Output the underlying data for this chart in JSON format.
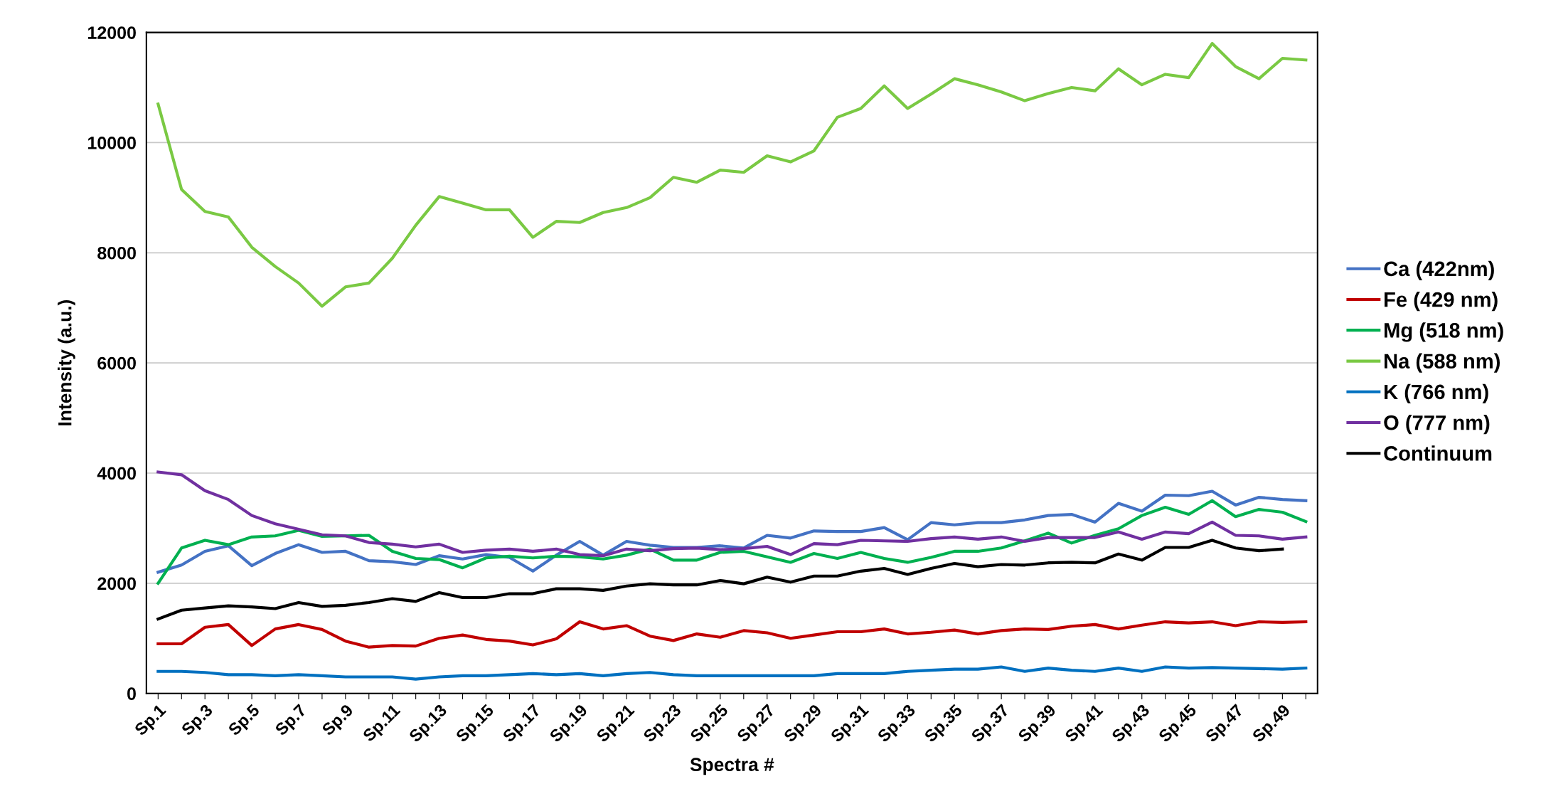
{
  "chart_data": {
    "type": "line",
    "xlabel": "Spectra #",
    "ylabel": "Intensity (a.u.)",
    "categories": [
      "Sp.1",
      null,
      "Sp.3",
      null,
      "Sp.5",
      null,
      "Sp.7",
      null,
      "Sp.9",
      null,
      "Sp.11",
      null,
      "Sp.13",
      null,
      "Sp.15",
      null,
      "Sp.17",
      null,
      "Sp.19",
      null,
      "Sp.21",
      null,
      "Sp.23",
      null,
      "Sp.25",
      null,
      "Sp.27",
      null,
      "Sp.29",
      null,
      "Sp.31",
      null,
      "Sp.33",
      null,
      "Sp.35",
      null,
      "Sp.37",
      null,
      "Sp.39",
      null,
      "Sp.41",
      null,
      "Sp.43",
      null,
      "Sp.45",
      null,
      "Sp.47",
      null,
      "Sp.49",
      null
    ],
    "series": [
      {
        "name": "Ca (422nm)",
        "color": "#4472c4",
        "values": [
          2200,
          2330,
          2580,
          2680,
          2320,
          2540,
          2700,
          2560,
          2580,
          2410,
          2390,
          2340,
          2500,
          2440,
          2520,
          2470,
          2220,
          2510,
          2760,
          2510,
          2760,
          2690,
          2650,
          2650,
          2680,
          2640,
          2870,
          2820,
          2950,
          2940,
          2940,
          3010,
          2790,
          3100,
          3060,
          3100,
          3100,
          3150,
          3230,
          3250,
          3110,
          3450,
          3310,
          3600,
          3590,
          3670,
          3420,
          3560,
          3520,
          3500
        ]
      },
      {
        "name": "Fe (429 nm)",
        "color": "#c00000",
        "values": [
          900,
          900,
          1200,
          1250,
          870,
          1170,
          1250,
          1160,
          950,
          840,
          870,
          860,
          1000,
          1060,
          980,
          950,
          880,
          990,
          1300,
          1170,
          1230,
          1040,
          960,
          1080,
          1020,
          1140,
          1100,
          1000,
          1060,
          1120,
          1120,
          1170,
          1080,
          1110,
          1150,
          1080,
          1140,
          1170,
          1160,
          1220,
          1250,
          1170,
          1240,
          1300,
          1280,
          1300,
          1230,
          1300,
          1290,
          1300
        ]
      },
      {
        "name": "Mg (518 nm)",
        "color": "#00b050",
        "values": [
          2000,
          2640,
          2780,
          2700,
          2840,
          2860,
          2960,
          2850,
          2860,
          2870,
          2580,
          2450,
          2430,
          2280,
          2460,
          2490,
          2460,
          2490,
          2480,
          2440,
          2510,
          2620,
          2420,
          2420,
          2560,
          2580,
          2480,
          2380,
          2540,
          2450,
          2560,
          2450,
          2380,
          2470,
          2580,
          2580,
          2640,
          2770,
          2910,
          2730,
          2870,
          2990,
          3230,
          3380,
          3250,
          3500,
          3210,
          3340,
          3290,
          3120
        ]
      },
      {
        "name": "Na (588 nm)",
        "color": "#7ac943",
        "values": [
          10700,
          9150,
          8750,
          8650,
          8100,
          7750,
          7450,
          7030,
          7380,
          7450,
          7900,
          8500,
          9020,
          8900,
          8780,
          8780,
          8280,
          8570,
          8550,
          8730,
          8820,
          9000,
          9370,
          9280,
          9500,
          9460,
          9760,
          9650,
          9850,
          10460,
          10620,
          11030,
          10620,
          10880,
          11160,
          11050,
          10920,
          10760,
          10890,
          11000,
          10940,
          11340,
          11050,
          11240,
          11180,
          11800,
          11380,
          11160,
          11530,
          11500
        ]
      },
      {
        "name": "K (766 nm)",
        "color": "#0070c0",
        "values": [
          400,
          400,
          380,
          340,
          340,
          320,
          340,
          320,
          300,
          300,
          300,
          260,
          300,
          320,
          320,
          340,
          360,
          340,
          360,
          320,
          360,
          380,
          340,
          320,
          320,
          320,
          320,
          320,
          320,
          360,
          360,
          360,
          400,
          420,
          440,
          440,
          480,
          400,
          460,
          420,
          400,
          460,
          400,
          480,
          460,
          470,
          460,
          450,
          440,
          460
        ]
      },
      {
        "name": "O (777 nm)",
        "color": "#7030a0",
        "values": [
          4020,
          3970,
          3680,
          3520,
          3230,
          3080,
          2980,
          2880,
          2860,
          2740,
          2710,
          2660,
          2710,
          2560,
          2600,
          2620,
          2580,
          2620,
          2520,
          2500,
          2620,
          2590,
          2630,
          2640,
          2610,
          2630,
          2670,
          2520,
          2720,
          2700,
          2780,
          2770,
          2760,
          2810,
          2840,
          2800,
          2840,
          2760,
          2830,
          2830,
          2830,
          2930,
          2800,
          2930,
          2900,
          3110,
          2870,
          2860,
          2800,
          2840
        ]
      },
      {
        "name": "Continuum",
        "color": "#000000",
        "values": [
          1350,
          1510,
          1550,
          1590,
          1570,
          1540,
          1650,
          1580,
          1600,
          1650,
          1720,
          1670,
          1830,
          1740,
          1740,
          1810,
          1810,
          1900,
          1900,
          1870,
          1950,
          1990,
          1970,
          1970,
          2050,
          1990,
          2110,
          2020,
          2130,
          2130,
          2220,
          2270,
          2160,
          2270,
          2360,
          2300,
          2340,
          2330,
          2370,
          2380,
          2370,
          2530,
          2420,
          2650,
          2650,
          2780,
          2640,
          2590,
          2620,
          null
        ]
      }
    ],
    "ylim": [
      0,
      12000
    ],
    "yticks": [
      0,
      2000,
      4000,
      6000,
      8000,
      10000,
      12000
    ],
    "grid": "y",
    "legend": "right",
    "marker": "none",
    "line_style": "solid"
  }
}
